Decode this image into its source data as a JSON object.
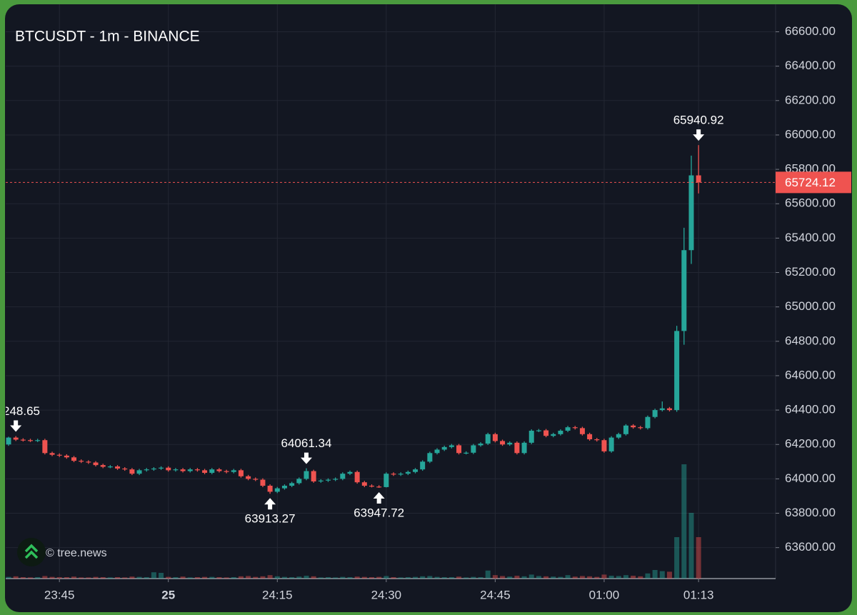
{
  "chart_data": {
    "type": "candlestick",
    "title": "BTCUSDT - 1m - BINANCE",
    "watermark": "© tree.news",
    "categories": [
      null,
      null,
      null,
      null,
      null,
      null,
      null,
      "23:45",
      null,
      null,
      null,
      null,
      null,
      null,
      null,
      null,
      null,
      null,
      null,
      null,
      null,
      null,
      "25",
      null,
      null,
      null,
      null,
      null,
      null,
      null,
      null,
      null,
      null,
      null,
      null,
      null,
      null,
      "24:15",
      null,
      null,
      null,
      null,
      null,
      null,
      null,
      null,
      null,
      null,
      null,
      null,
      null,
      null,
      "24:30",
      null,
      null,
      null,
      null,
      null,
      null,
      null,
      null,
      null,
      null,
      null,
      null,
      null,
      null,
      "24:45",
      null,
      null,
      null,
      null,
      null,
      null,
      null,
      null,
      null,
      null,
      null,
      null,
      null,
      null,
      "01:00",
      null,
      null,
      null,
      null,
      null,
      null,
      null,
      null,
      null,
      null,
      null,
      null,
      "01:13"
    ],
    "open": [
      64200,
      64240,
      64228,
      64225,
      64222,
      64225,
      64150,
      64140,
      64135,
      64125,
      64105,
      64100,
      64095,
      64080,
      64070,
      64072,
      64060,
      64055,
      64030,
      64050,
      64055,
      64060,
      64065,
      64050,
      64055,
      64045,
      64055,
      64050,
      64035,
      64055,
      64045,
      64040,
      64050,
      64015,
      64000,
      63995,
      63960,
      63925,
      63945,
      63960,
      63975,
      64000,
      64045,
      63985,
      63990,
      63995,
      64000,
      64030,
      64040,
      63980,
      63960,
      63955,
      63952,
      64030,
      64025,
      64030,
      64040,
      64055,
      64100,
      64150,
      64170,
      64185,
      64195,
      64150,
      64152,
      64195,
      64205,
      64260,
      64220,
      64200,
      64210,
      64150,
      64210,
      64280,
      64282,
      64250,
      64260,
      64280,
      64300,
      64295,
      64260,
      64230,
      64225,
      64160,
      64240,
      64260,
      64310,
      64300,
      64295,
      64360,
      64400,
      64410,
      64400,
      64860,
      65330,
      65765
    ],
    "high": [
      64245,
      64248.65,
      64236,
      64233,
      64233,
      64233,
      64158,
      64148,
      64143,
      64133,
      64113,
      64108,
      64103,
      64088,
      64080,
      64080,
      64068,
      64063,
      64058,
      64063,
      64068,
      64073,
      64073,
      64063,
      64063,
      64063,
      64063,
      64058,
      64063,
      64063,
      64053,
      64058,
      64058,
      64023,
      64008,
      64003,
      63968,
      63953,
      63968,
      63983,
      64008,
      64061.34,
      64053,
      63998,
      64003,
      64008,
      64038,
      64048,
      64048,
      63988,
      63968,
      63963,
      64038,
      64038,
      64038,
      64048,
      64063,
      64108,
      64158,
      64178,
      64193,
      64203,
      64203,
      64160,
      64203,
      64213,
      64268,
      64268,
      64228,
      64218,
      64218,
      64218,
      64288,
      64290,
      64290,
      64268,
      64288,
      64308,
      64308,
      64303,
      64268,
      64238,
      64233,
      64248,
      64268,
      64318,
      64318,
      64308,
      64368,
      64408,
      64450,
      64418,
      64890,
      65460,
      65880,
      65940.92
    ],
    "low": [
      64192,
      64220,
      64217,
      64214,
      64214,
      64142,
      64132,
      64127,
      64117,
      64097,
      64092,
      64087,
      64072,
      64062,
      64062,
      64052,
      64047,
      64022,
      64022,
      64042,
      64047,
      64052,
      64042,
      64042,
      64037,
      64037,
      64042,
      64027,
      64027,
      64037,
      64032,
      64032,
      64007,
      63992,
      63987,
      63952,
      63913.27,
      63917,
      63937,
      63952,
      63967,
      63992,
      63977,
      63977,
      63982,
      63987,
      63992,
      64022,
      63972,
      63952,
      63950,
      63947.72,
      63950,
      64017,
      64017,
      64022,
      64032,
      64047,
      64092,
      64142,
      64162,
      64177,
      64142,
      64142,
      64144,
      64187,
      64197,
      64212,
      64192,
      64192,
      64142,
      64142,
      64202,
      64272,
      64242,
      64242,
      64252,
      64272,
      64287,
      64252,
      64222,
      64217,
      64152,
      64152,
      64232,
      64252,
      64292,
      64287,
      64287,
      64352,
      64392,
      64392,
      64390,
      64780,
      65250,
      65660
    ],
    "close": [
      64240,
      64228,
      64225,
      64222,
      64225,
      64150,
      64140,
      64135,
      64125,
      64105,
      64100,
      64095,
      64080,
      64070,
      64072,
      64060,
      64055,
      64030,
      64050,
      64055,
      64060,
      64065,
      64050,
      64055,
      64045,
      64055,
      64050,
      64035,
      64055,
      64045,
      64040,
      64050,
      64015,
      64000,
      63995,
      63960,
      63925,
      63945,
      63960,
      63975,
      64000,
      64045,
      63985,
      63990,
      63995,
      64000,
      64030,
      64040,
      63980,
      63960,
      63955,
      63952,
      64030,
      64025,
      64030,
      64040,
      64055,
      64100,
      64150,
      64170,
      64185,
      64195,
      64150,
      64152,
      64195,
      64205,
      64260,
      64220,
      64200,
      64210,
      64150,
      64210,
      64280,
      64282,
      64250,
      64260,
      64280,
      64300,
      64295,
      64260,
      64230,
      64225,
      64160,
      64240,
      64260,
      64310,
      64300,
      64295,
      64360,
      64400,
      64410,
      64400,
      64860,
      65330,
      65765,
      65724.12
    ],
    "volume": [
      6,
      8,
      5,
      4,
      5,
      9,
      6,
      5,
      5,
      7,
      4,
      4,
      6,
      5,
      4,
      5,
      4,
      7,
      6,
      5,
      22,
      20,
      6,
      5,
      7,
      4,
      5,
      6,
      6,
      5,
      4,
      5,
      8,
      9,
      6,
      8,
      12,
      8,
      6,
      5,
      7,
      10,
      8,
      4,
      5,
      4,
      6,
      5,
      7,
      6,
      5,
      6,
      9,
      5,
      4,
      5,
      6,
      8,
      9,
      6,
      5,
      5,
      7,
      4,
      6,
      5,
      28,
      12,
      9,
      7,
      10,
      8,
      14,
      9,
      8,
      7,
      6,
      12,
      7,
      9,
      8,
      6,
      14,
      10,
      9,
      12,
      10,
      8,
      18,
      30,
      26,
      24,
      145,
      400,
      230,
      145
    ],
    "up_color": "#26a69a",
    "down_color": "#ef5350",
    "ylim": [
      63420,
      66760
    ],
    "yticks": [
      {
        "value": 63600,
        "label": "63600.00"
      },
      {
        "value": 63800,
        "label": "63800.00"
      },
      {
        "value": 64000,
        "label": "64000.00"
      },
      {
        "value": 64200,
        "label": "64200.00"
      },
      {
        "value": 64400,
        "label": "64400.00"
      },
      {
        "value": 64600,
        "label": "64600.00"
      },
      {
        "value": 64800,
        "label": "64800.00"
      },
      {
        "value": 65000,
        "label": "65000.00"
      },
      {
        "value": 65200,
        "label": "65200.00"
      },
      {
        "value": 65400,
        "label": "65400.00"
      },
      {
        "value": 65600,
        "label": "65600.00"
      },
      {
        "value": 65800,
        "label": "65800.00"
      },
      {
        "value": 66000,
        "label": "66000.00"
      },
      {
        "value": 66200,
        "label": "66200.00"
      },
      {
        "value": 66400,
        "label": "66400.00"
      },
      {
        "value": 66600,
        "label": "66600.00"
      }
    ],
    "grid": true,
    "annotations": [
      "248.65",
      "64061.34",
      "63913.27",
      "63947.72",
      "65940.92"
    ]
  }
}
